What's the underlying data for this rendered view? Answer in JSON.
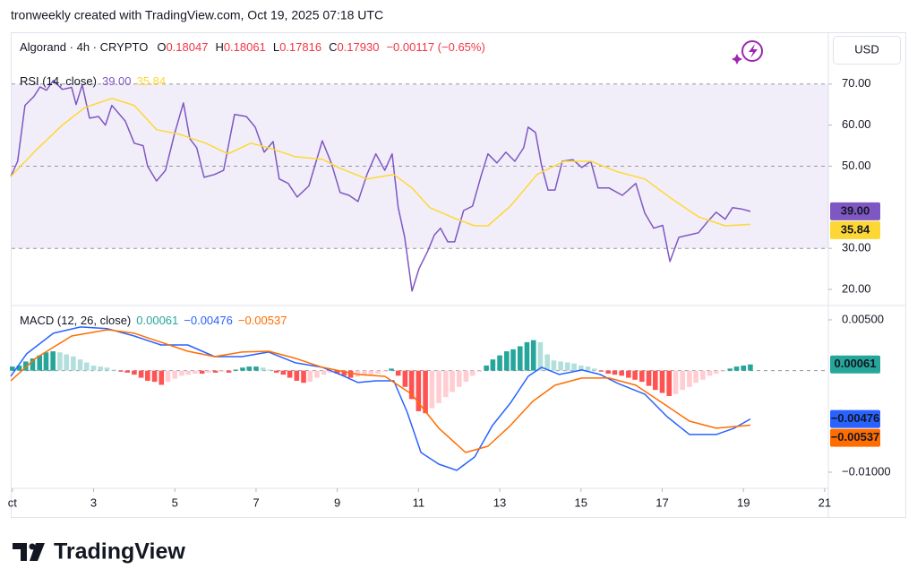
{
  "header": "tronweekly created with TradingView.com, Oct 19, 2025 07:18 UTC",
  "symbol_legend": {
    "name": "Algorand · 4h · CRYPTO",
    "ohlc": [
      {
        "key": "O",
        "value": "0.18047"
      },
      {
        "key": "H",
        "value": "0.18061"
      },
      {
        "key": "L",
        "value": "0.17816"
      },
      {
        "key": "C",
        "value": "0.17930"
      }
    ],
    "change": "−0.00117 (−0.65%)",
    "change_color": "#f23645"
  },
  "currency": "USD",
  "logo": "TradingView",
  "chart_data": [
    {
      "type": "line",
      "title": "RSI (14, close)",
      "xlim": [
        0.96,
        21.09
      ],
      "ylim": [
        16.3,
        74.1
      ],
      "yticks": [
        {
          "value": 70,
          "label": "70.00"
        },
        {
          "value": 60,
          "label": "60.00"
        },
        {
          "value": 50,
          "label": "50.00"
        },
        {
          "value": 30,
          "label": "30.00"
        },
        {
          "value": 20,
          "label": "20.00"
        }
      ],
      "band": [
        30,
        70
      ],
      "band_color": "#7e57c2",
      "dashed_lines": [
        70,
        50,
        30
      ],
      "series": [
        {
          "color": "#7e57c2",
          "text_color": "#ffffff",
          "last_label": "39.00",
          "x": [
            0.96,
            1.13,
            1.31,
            1.53,
            1.68,
            1.84,
            2.01,
            2.23,
            2.46,
            2.57,
            2.72,
            2.9,
            3.12,
            3.29,
            3.45,
            3.78,
            4,
            4.22,
            4.33,
            4.55,
            4.77,
            4.99,
            5.21,
            5.37,
            5.54,
            5.72,
            5.98,
            6.2,
            6.47,
            6.76,
            6.98,
            7.2,
            7.42,
            7.57,
            7.79,
            8.01,
            8.3,
            8.63,
            8.85,
            9.07,
            9.29,
            9.51,
            9.73,
            9.95,
            10.17,
            10.35,
            10.5,
            10.66,
            10.84,
            11.01,
            11.23,
            11.39,
            11.54,
            11.72,
            11.89,
            12.11,
            12.33,
            12.55,
            12.71,
            12.93,
            13.15,
            13.37,
            13.59,
            13.7,
            13.88,
            14.03,
            14.19,
            14.36,
            14.54,
            14.8,
            15.02,
            15.24,
            15.42,
            15.69,
            16.02,
            16.35,
            16.57,
            16.79,
            17.01,
            17.19,
            17.41,
            17.67,
            17.89,
            18.11,
            18.33,
            18.55,
            18.73,
            18.95,
            19.17
          ],
          "values": [
            47.5,
            51.2,
            64.8,
            67,
            69.3,
            68.5,
            70.9,
            68.7,
            69.2,
            65,
            69.8,
            61.7,
            62.1,
            60,
            64.8,
            61,
            55.6,
            55,
            50,
            46.4,
            49,
            57.8,
            65.4,
            56.7,
            54.5,
            47.3,
            48,
            49,
            62.6,
            62.1,
            59.5,
            53.4,
            56,
            46.9,
            45.8,
            42.5,
            45.2,
            56.2,
            50.8,
            43.6,
            42.9,
            41.4,
            48,
            53,
            49,
            53,
            39.9,
            32.7,
            19.6,
            25,
            29.4,
            33.3,
            34.9,
            31.6,
            31.6,
            39.2,
            40.3,
            48,
            53,
            50.8,
            53.4,
            51.2,
            54.5,
            59.5,
            58.2,
            50.1,
            44.2,
            44.2,
            51.2,
            51.6,
            49.7,
            51.2,
            44.7,
            44.7,
            42.9,
            45.8,
            38.6,
            34.9,
            35.6,
            26.8,
            32.7,
            33.3,
            33.8,
            36.4,
            38.8,
            37.1,
            39.9,
            39.6,
            39
          ]
        },
        {
          "color": "#fdd835",
          "text_color": "#131722",
          "last_label": "35.84",
          "x": [
            0.96,
            1.57,
            2.23,
            2.79,
            3.45,
            4,
            4.55,
            5.1,
            5.76,
            6.31,
            6.87,
            7.31,
            7.97,
            8.63,
            9.07,
            9.73,
            10.39,
            10.84,
            11.28,
            11.94,
            12.38,
            12.71,
            13.26,
            13.92,
            14.58,
            15.24,
            15.91,
            16.57,
            17.23,
            17.89,
            18.55,
            19.17
          ],
          "values": [
            47.5,
            53.8,
            60,
            64.3,
            66.5,
            64.8,
            58.9,
            57.8,
            55.6,
            53,
            55.6,
            54.5,
            52.3,
            51.7,
            49.5,
            46.9,
            48,
            44.7,
            39.9,
            37.1,
            35.5,
            35.5,
            40.3,
            48,
            51.2,
            51.2,
            48.6,
            46.9,
            42.1,
            37.7,
            35.5,
            35.84
          ]
        }
      ]
    },
    {
      "type": "combo",
      "title": "MACD (12, 26, close)",
      "xlim": [
        0.96,
        21.09
      ],
      "ylim": [
        -0.01115,
        0.00632
      ],
      "yticks": [
        {
          "value": 0.005,
          "label": "0.00500"
        },
        {
          "value": -0.01,
          "label": "−0.01000"
        }
      ],
      "xticks": [
        {
          "value": 1,
          "label": "ct"
        },
        3,
        5,
        7,
        9,
        11,
        13,
        15,
        17,
        19,
        21
      ],
      "dashed_lines": [
        0
      ],
      "series": [
        {
          "style": "histogram",
          "color": "#26a69a",
          "text_color": "#ffffff",
          "last_label": "0.00061",
          "colors": [
            "#26a69a",
            "#b2dfdb",
            "#ff5252",
            "#ffcdd2"
          ],
          "x": [
            1,
            1.17,
            1.33,
            1.5,
            1.67,
            1.83,
            2,
            2.17,
            2.33,
            2.5,
            2.67,
            2.83,
            3,
            3.17,
            3.33,
            3.5,
            3.67,
            3.83,
            4,
            4.17,
            4.33,
            4.5,
            4.67,
            4.83,
            5,
            5.17,
            5.33,
            5.5,
            5.67,
            5.83,
            6,
            6.17,
            6.33,
            6.5,
            6.67,
            6.83,
            7,
            7.17,
            7.33,
            7.5,
            7.67,
            7.83,
            8,
            8.17,
            8.33,
            8.5,
            8.67,
            8.83,
            9,
            9.17,
            9.33,
            9.5,
            9.67,
            9.83,
            10,
            10.17,
            10.33,
            10.5,
            10.67,
            10.83,
            11,
            11.17,
            11.33,
            11.5,
            11.67,
            11.83,
            12,
            12.17,
            12.33,
            12.5,
            12.67,
            12.83,
            13,
            13.17,
            13.33,
            13.5,
            13.67,
            13.83,
            14,
            14.17,
            14.33,
            14.5,
            14.67,
            14.83,
            15,
            15.17,
            15.33,
            15.5,
            15.67,
            15.83,
            16,
            16.17,
            16.33,
            16.5,
            16.67,
            16.83,
            17,
            17.17,
            17.33,
            17.5,
            17.67,
            17.83,
            18,
            18.17,
            18.33,
            18.5,
            18.67,
            18.83,
            19,
            19.17
          ],
          "values": [
            0.0004,
            0.0005,
            0.0009,
            0.0012,
            0.0015,
            0.0018,
            0.0019,
            0.0018,
            0.0016,
            0.0014,
            0.0011,
            0.0008,
            0.0005,
            0.0004,
            0.0003,
            0.0001,
            -0.0001,
            -0.0002,
            -0.0004,
            -0.0007,
            -0.001,
            -0.0011,
            -0.0014,
            -0.0011,
            -0.0008,
            -0.0005,
            -0.0004,
            -0.0003,
            -0.0003,
            -0.0002,
            -0.0002,
            -0.0001,
            -0.0002,
            0.0001,
            0.0003,
            0.0004,
            0.0004,
            0.0003,
            0.0001,
            -0.0002,
            -0.0004,
            -0.0007,
            -0.001,
            -0.0012,
            -0.0011,
            -0.0007,
            -0.0004,
            -0.0002,
            -0.0003,
            -0.0005,
            -0.0007,
            -0.0006,
            -0.0005,
            -0.0004,
            -0.0003,
            -0.0001,
            0.0002,
            -0.0005,
            -0.0016,
            -0.0028,
            -0.004,
            -0.0042,
            -0.0037,
            -0.0032,
            -0.0026,
            -0.0021,
            -0.0016,
            -0.0011,
            -0.0005,
            -0.0001,
            0.0005,
            0.0011,
            0.0015,
            0.0019,
            0.0021,
            0.0024,
            0.0028,
            0.003,
            0.0028,
            0.0016,
            0.001,
            0.0009,
            0.0008,
            0.0007,
            0.0005,
            0.0004,
            0.0002,
            -0.0001,
            -0.0003,
            -0.0004,
            -0.0005,
            -0.0007,
            -0.0009,
            -0.0011,
            -0.0015,
            -0.0019,
            -0.0022,
            -0.0025,
            -0.0023,
            -0.0019,
            -0.0016,
            -0.0012,
            -0.0009,
            -0.0005,
            -0.0003,
            -0.0001,
            0.0002,
            0.0004,
            0.0005,
            0.00061
          ]
        },
        {
          "color": "#2962ff",
          "text_color": "#ffffff",
          "last_label": "−0.00476",
          "x": [
            0.96,
            1.35,
            2.01,
            2.68,
            3.34,
            4,
            4.66,
            5.32,
            5.98,
            6.65,
            7.31,
            7.97,
            8.63,
            9.07,
            9.51,
            9.95,
            10.39,
            10.72,
            11.06,
            11.5,
            11.94,
            12.38,
            12.82,
            13.26,
            13.7,
            14.03,
            14.47,
            15.02,
            15.47,
            15.91,
            16.57,
            17.12,
            17.67,
            18.33,
            18.77,
            19.17
          ],
          "values": [
            -0.00056,
            0.00165,
            0.00368,
            0.0043,
            0.00413,
            0.00341,
            0.00253,
            0.00253,
            0.00138,
            0.00138,
            0.00183,
            0.00077,
            0.00033,
            -0.00038,
            -0.00117,
            -0.001,
            -0.001,
            -0.00409,
            -0.00806,
            -0.00921,
            -0.00982,
            -0.0085,
            -0.00541,
            -0.0032,
            -0.00056,
            0.00033,
            -0.00038,
            6e-05,
            -0.00038,
            -0.00126,
            -0.00232,
            -0.00453,
            -0.00629,
            -0.00629,
            -0.00567,
            -0.00476
          ]
        },
        {
          "color": "#ff6d00",
          "text_color": "#ffffff",
          "last_label": "−0.00537",
          "x": [
            0.96,
            1.57,
            2.46,
            3.34,
            4,
            4.66,
            5.32,
            5.98,
            6.65,
            7.31,
            7.97,
            8.63,
            9.51,
            10.17,
            10.83,
            11.5,
            12.16,
            12.71,
            13.26,
            13.81,
            14.36,
            15.02,
            15.69,
            16.35,
            17.01,
            17.67,
            18.33,
            19.17
          ],
          "values": [
            -0.001,
            0.00121,
            0.00341,
            0.00403,
            0.00368,
            0.0028,
            0.00191,
            0.00138,
            0.00183,
            0.00191,
            0.00121,
            0.00033,
            -0.00038,
            -0.00056,
            -0.00232,
            -0.00567,
            -0.00806,
            -0.00744,
            -0.00541,
            -0.00303,
            -0.00144,
            -0.00073,
            -0.00073,
            -0.00144,
            -0.0032,
            -0.00497,
            -0.00567,
            -0.00537
          ]
        }
      ]
    }
  ]
}
